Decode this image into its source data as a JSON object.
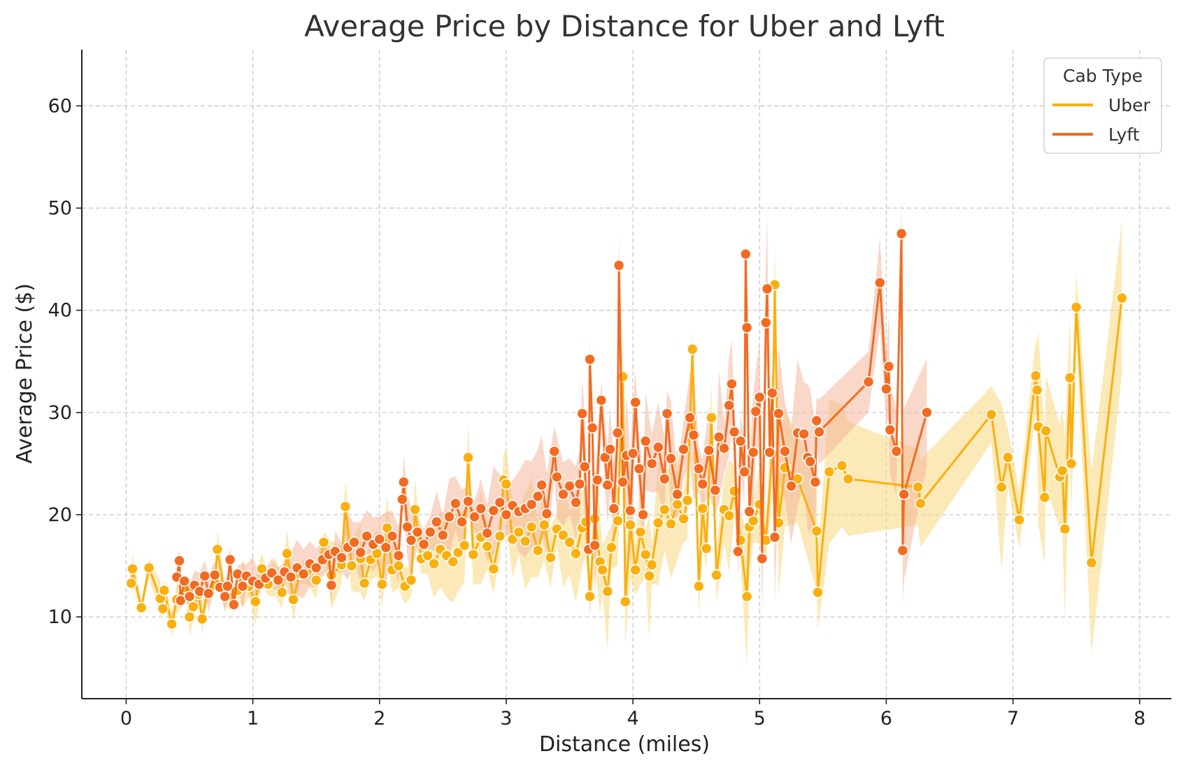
{
  "chart_data": {
    "type": "line",
    "title": "Average Price by Distance for Uber and Lyft",
    "xlabel": "Distance (miles)",
    "ylabel": "Average Price ($)",
    "xlim": [
      -0.35,
      8.25
    ],
    "ylim": [
      2.0,
      65.5
    ],
    "xticks": [
      0,
      1,
      2,
      3,
      4,
      5,
      6,
      7,
      8
    ],
    "yticks": [
      10,
      20,
      30,
      40,
      50,
      60
    ],
    "grid": true,
    "legend": {
      "title": "Cab Type",
      "position": "top-right"
    },
    "series": [
      {
        "name": "Uber",
        "color": "#F9B00F",
        "band_color": "#F8D77C",
        "points": [
          [
            0.04,
            13.3
          ],
          [
            0.05,
            14.7
          ],
          [
            0.12,
            10.9
          ],
          [
            0.18,
            14.8
          ],
          [
            0.27,
            11.8
          ],
          [
            0.29,
            10.8
          ],
          [
            0.3,
            12.6
          ],
          [
            0.36,
            9.3
          ],
          [
            0.4,
            11.7
          ],
          [
            0.45,
            12.3
          ],
          [
            0.48,
            12.8
          ],
          [
            0.5,
            10.0
          ],
          [
            0.53,
            11.0
          ],
          [
            0.57,
            12.2
          ],
          [
            0.6,
            9.8
          ],
          [
            0.64,
            12.4
          ],
          [
            0.7,
            13.1
          ],
          [
            0.72,
            16.6
          ],
          [
            0.78,
            12.1
          ],
          [
            0.83,
            11.9
          ],
          [
            0.88,
            12.6
          ],
          [
            0.92,
            13.3
          ],
          [
            0.97,
            13.0
          ],
          [
            1.02,
            11.5
          ],
          [
            1.07,
            14.7
          ],
          [
            1.12,
            13.2
          ],
          [
            1.18,
            13.9
          ],
          [
            1.23,
            12.4
          ],
          [
            1.27,
            16.2
          ],
          [
            1.32,
            11.7
          ],
          [
            1.37,
            14.2
          ],
          [
            1.43,
            14.5
          ],
          [
            1.5,
            13.6
          ],
          [
            1.56,
            17.3
          ],
          [
            1.62,
            14.1
          ],
          [
            1.7,
            15.1
          ],
          [
            1.73,
            20.8
          ],
          [
            1.78,
            15.0
          ],
          [
            1.85,
            15.7
          ],
          [
            1.88,
            13.3
          ],
          [
            1.93,
            15.6
          ],
          [
            1.98,
            16.2
          ],
          [
            2.02,
            13.2
          ],
          [
            2.06,
            18.7
          ],
          [
            2.1,
            14.6
          ],
          [
            2.15,
            15.0
          ],
          [
            2.2,
            13.0
          ],
          [
            2.25,
            13.6
          ],
          [
            2.28,
            20.5
          ],
          [
            2.33,
            15.7
          ],
          [
            2.38,
            16.0
          ],
          [
            2.43,
            15.2
          ],
          [
            2.48,
            16.6
          ],
          [
            2.53,
            16.0
          ],
          [
            2.58,
            15.4
          ],
          [
            2.62,
            16.3
          ],
          [
            2.67,
            17.0
          ],
          [
            2.7,
            25.6
          ],
          [
            2.74,
            16.1
          ],
          [
            2.8,
            17.8
          ],
          [
            2.85,
            16.9
          ],
          [
            2.9,
            14.7
          ],
          [
            2.95,
            17.9
          ],
          [
            2.98,
            23.4
          ],
          [
            3.0,
            23.0
          ],
          [
            3.05,
            17.6
          ],
          [
            3.1,
            18.3
          ],
          [
            3.15,
            17.4
          ],
          [
            3.2,
            18.8
          ],
          [
            3.25,
            16.5
          ],
          [
            3.3,
            19.0
          ],
          [
            3.35,
            15.8
          ],
          [
            3.4,
            18.6
          ],
          [
            3.45,
            18.0
          ],
          [
            3.5,
            17.3
          ],
          [
            3.55,
            16.2
          ],
          [
            3.6,
            18.7
          ],
          [
            3.63,
            19.3
          ],
          [
            3.66,
            12.0
          ],
          [
            3.7,
            19.6
          ],
          [
            3.74,
            15.4
          ],
          [
            3.76,
            14.6
          ],
          [
            3.8,
            12.5
          ],
          [
            3.83,
            16.8
          ],
          [
            3.88,
            19.4
          ],
          [
            3.92,
            33.5
          ],
          [
            3.94,
            11.5
          ],
          [
            3.98,
            19.0
          ],
          [
            4.02,
            14.6
          ],
          [
            4.06,
            18.3
          ],
          [
            4.1,
            16.1
          ],
          [
            4.13,
            14.0
          ],
          [
            4.15,
            15.1
          ],
          [
            4.2,
            19.2
          ],
          [
            4.25,
            20.5
          ],
          [
            4.3,
            19.1
          ],
          [
            4.35,
            21.0
          ],
          [
            4.4,
            19.6
          ],
          [
            4.43,
            21.4
          ],
          [
            4.47,
            36.2
          ],
          [
            4.52,
            13.0
          ],
          [
            4.55,
            20.6
          ],
          [
            4.58,
            16.7
          ],
          [
            4.62,
            29.5
          ],
          [
            4.66,
            14.1
          ],
          [
            4.72,
            20.5
          ],
          [
            4.76,
            19.9
          ],
          [
            4.8,
            22.3
          ],
          [
            4.85,
            17.5
          ],
          [
            4.9,
            12.0
          ],
          [
            4.92,
            18.8
          ],
          [
            4.95,
            19.4
          ],
          [
            5.0,
            21.0
          ],
          [
            5.05,
            17.5
          ],
          [
            5.1,
            26.0
          ],
          [
            5.12,
            42.5
          ],
          [
            5.15,
            19.2
          ],
          [
            5.2,
            24.6
          ],
          [
            5.3,
            23.5
          ],
          [
            5.45,
            18.4
          ],
          [
            5.46,
            12.4
          ],
          [
            5.55,
            24.2
          ],
          [
            5.65,
            24.8
          ],
          [
            5.7,
            23.5
          ],
          [
            6.25,
            22.7
          ],
          [
            6.27,
            21.1
          ],
          [
            6.83,
            29.8
          ],
          [
            6.91,
            22.7
          ],
          [
            6.96,
            25.6
          ],
          [
            7.05,
            19.5
          ],
          [
            7.18,
            33.6
          ],
          [
            7.19,
            32.2
          ],
          [
            7.2,
            28.6
          ],
          [
            7.25,
            21.7
          ],
          [
            7.26,
            28.2
          ],
          [
            7.37,
            23.7
          ],
          [
            7.39,
            24.3
          ],
          [
            7.41,
            18.6
          ],
          [
            7.45,
            33.4
          ],
          [
            7.46,
            25.0
          ],
          [
            7.5,
            40.3
          ],
          [
            7.62,
            15.3
          ],
          [
            7.86,
            41.2
          ]
        ]
      },
      {
        "name": "Lyft",
        "color": "#F26B21",
        "band_color": "#F4B79C",
        "points": [
          [
            0.4,
            13.9
          ],
          [
            0.42,
            15.5
          ],
          [
            0.43,
            11.6
          ],
          [
            0.46,
            13.5
          ],
          [
            0.5,
            12.0
          ],
          [
            0.54,
            13.1
          ],
          [
            0.58,
            12.5
          ],
          [
            0.62,
            14.0
          ],
          [
            0.65,
            12.3
          ],
          [
            0.7,
            14.1
          ],
          [
            0.74,
            12.9
          ],
          [
            0.78,
            12.0
          ],
          [
            0.8,
            13.0
          ],
          [
            0.82,
            15.6
          ],
          [
            0.85,
            11.2
          ],
          [
            0.88,
            14.2
          ],
          [
            0.92,
            13.0
          ],
          [
            0.95,
            14.0
          ],
          [
            1.0,
            13.5
          ],
          [
            1.05,
            13.2
          ],
          [
            1.1,
            13.8
          ],
          [
            1.15,
            14.3
          ],
          [
            1.2,
            13.6
          ],
          [
            1.25,
            14.4
          ],
          [
            1.3,
            13.9
          ],
          [
            1.35,
            14.8
          ],
          [
            1.4,
            14.2
          ],
          [
            1.45,
            15.2
          ],
          [
            1.5,
            14.8
          ],
          [
            1.55,
            15.6
          ],
          [
            1.6,
            16.1
          ],
          [
            1.62,
            13.1
          ],
          [
            1.65,
            16.4
          ],
          [
            1.7,
            15.8
          ],
          [
            1.75,
            16.8
          ],
          [
            1.8,
            17.3
          ],
          [
            1.85,
            16.3
          ],
          [
            1.9,
            17.9
          ],
          [
            1.95,
            17.1
          ],
          [
            2.0,
            17.6
          ],
          [
            2.05,
            16.8
          ],
          [
            2.1,
            17.9
          ],
          [
            2.15,
            16.0
          ],
          [
            2.18,
            21.5
          ],
          [
            2.19,
            23.2
          ],
          [
            2.22,
            18.8
          ],
          [
            2.25,
            17.5
          ],
          [
            2.3,
            18.3
          ],
          [
            2.35,
            17.1
          ],
          [
            2.4,
            18.3
          ],
          [
            2.45,
            19.3
          ],
          [
            2.5,
            18.0
          ],
          [
            2.55,
            19.8
          ],
          [
            2.6,
            21.1
          ],
          [
            2.65,
            19.3
          ],
          [
            2.7,
            21.3
          ],
          [
            2.75,
            19.8
          ],
          [
            2.8,
            20.6
          ],
          [
            2.85,
            18.2
          ],
          [
            2.9,
            20.4
          ],
          [
            2.95,
            21.2
          ],
          [
            3.0,
            20.0
          ],
          [
            3.05,
            20.9
          ],
          [
            3.1,
            20.3
          ],
          [
            3.15,
            20.6
          ],
          [
            3.2,
            21.0
          ],
          [
            3.25,
            21.8
          ],
          [
            3.28,
            22.9
          ],
          [
            3.32,
            20.1
          ],
          [
            3.38,
            26.2
          ],
          [
            3.4,
            23.7
          ],
          [
            3.45,
            22.0
          ],
          [
            3.5,
            22.8
          ],
          [
            3.55,
            21.2
          ],
          [
            3.58,
            23.0
          ],
          [
            3.6,
            29.9
          ],
          [
            3.62,
            24.7
          ],
          [
            3.65,
            16.6
          ],
          [
            3.66,
            35.2
          ],
          [
            3.68,
            28.5
          ],
          [
            3.7,
            17.0
          ],
          [
            3.72,
            23.4
          ],
          [
            3.75,
            31.2
          ],
          [
            3.78,
            25.6
          ],
          [
            3.8,
            22.9
          ],
          [
            3.82,
            26.4
          ],
          [
            3.85,
            20.6
          ],
          [
            3.88,
            28.0
          ],
          [
            3.89,
            44.4
          ],
          [
            3.92,
            23.2
          ],
          [
            3.95,
            25.8
          ],
          [
            3.98,
            20.4
          ],
          [
            4.0,
            26.0
          ],
          [
            4.02,
            31.0
          ],
          [
            4.05,
            24.5
          ],
          [
            4.08,
            20.0
          ],
          [
            4.1,
            27.2
          ],
          [
            4.15,
            25.0
          ],
          [
            4.2,
            26.6
          ],
          [
            4.25,
            23.5
          ],
          [
            4.27,
            29.9
          ],
          [
            4.3,
            25.5
          ],
          [
            4.35,
            22.0
          ],
          [
            4.4,
            26.4
          ],
          [
            4.45,
            29.5
          ],
          [
            4.48,
            27.8
          ],
          [
            4.52,
            24.5
          ],
          [
            4.55,
            23.0
          ],
          [
            4.6,
            26.3
          ],
          [
            4.65,
            22.4
          ],
          [
            4.68,
            27.6
          ],
          [
            4.72,
            26.5
          ],
          [
            4.76,
            30.7
          ],
          [
            4.78,
            32.8
          ],
          [
            4.8,
            28.1
          ],
          [
            4.83,
            16.4
          ],
          [
            4.85,
            27.2
          ],
          [
            4.88,
            24.2
          ],
          [
            4.89,
            45.5
          ],
          [
            4.9,
            38.3
          ],
          [
            4.92,
            20.3
          ],
          [
            4.95,
            26.1
          ],
          [
            4.97,
            30.1
          ],
          [
            5.0,
            31.5
          ],
          [
            5.02,
            15.7
          ],
          [
            5.05,
            38.8
          ],
          [
            5.06,
            42.1
          ],
          [
            5.08,
            26.1
          ],
          [
            5.1,
            31.9
          ],
          [
            5.12,
            17.8
          ],
          [
            5.15,
            29.9
          ],
          [
            5.2,
            26.2
          ],
          [
            5.25,
            22.8
          ],
          [
            5.3,
            28.0
          ],
          [
            5.35,
            27.9
          ],
          [
            5.38,
            25.6
          ],
          [
            5.4,
            25.2
          ],
          [
            5.44,
            23.2
          ],
          [
            5.45,
            29.2
          ],
          [
            5.47,
            28.1
          ],
          [
            5.86,
            33.0
          ],
          [
            5.95,
            42.7
          ],
          [
            6.0,
            32.3
          ],
          [
            6.02,
            34.5
          ],
          [
            6.03,
            28.3
          ],
          [
            6.08,
            26.2
          ],
          [
            6.12,
            47.5
          ],
          [
            6.13,
            16.5
          ],
          [
            6.14,
            22.0
          ],
          [
            6.32,
            30.0
          ]
        ]
      }
    ]
  }
}
